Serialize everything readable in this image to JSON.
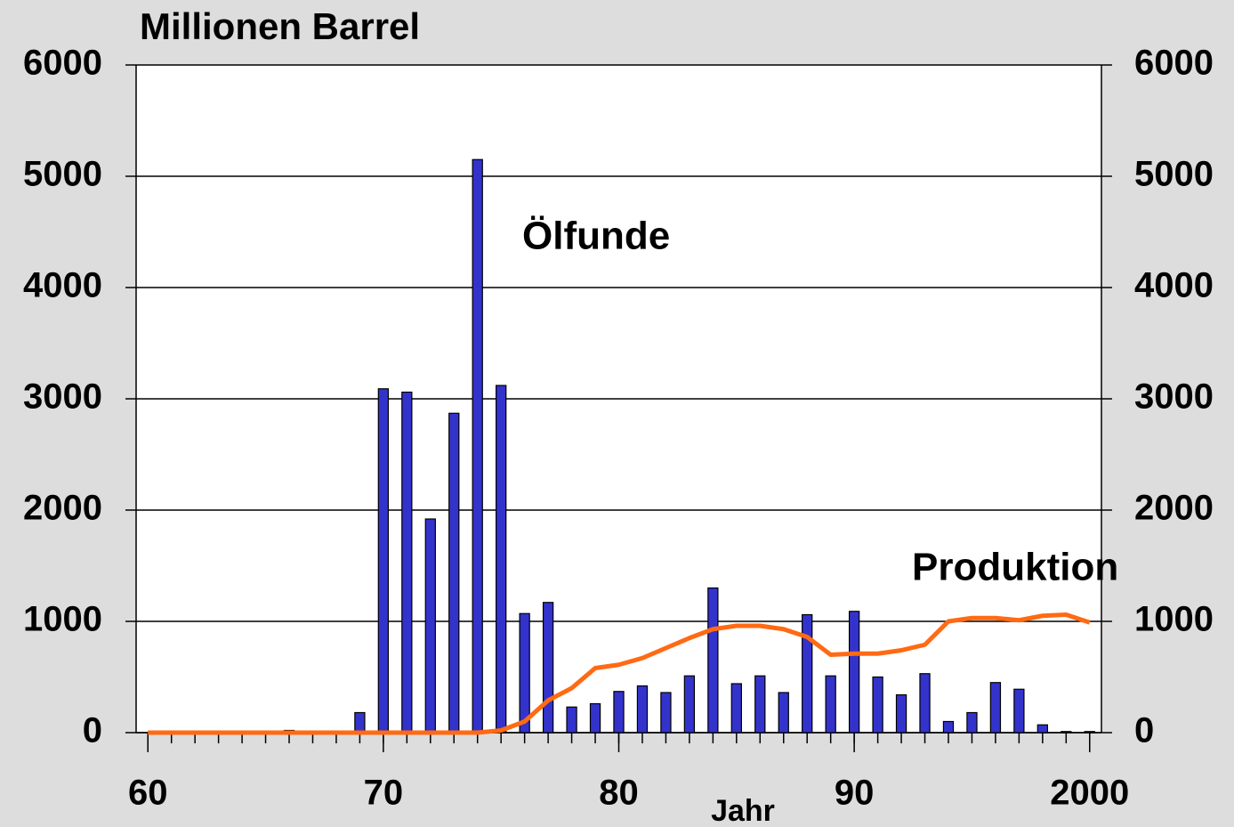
{
  "chart_data": {
    "type": "bar",
    "title": "Millionen Barrel",
    "xlabel": "Jahr",
    "x": [
      60,
      61,
      62,
      63,
      64,
      65,
      66,
      67,
      68,
      69,
      70,
      71,
      72,
      73,
      74,
      75,
      76,
      77,
      78,
      79,
      80,
      81,
      82,
      83,
      84,
      85,
      86,
      87,
      88,
      89,
      90,
      91,
      92,
      93,
      94,
      95,
      96,
      97,
      98,
      99,
      100
    ],
    "series": [
      {
        "name": "Ölfunde",
        "type": "bar",
        "color": "#3333cc",
        "values": [
          0,
          0,
          0,
          0,
          0,
          0,
          20,
          0,
          0,
          180,
          3090,
          3060,
          1920,
          2870,
          5150,
          3120,
          1070,
          1170,
          230,
          260,
          370,
          420,
          360,
          510,
          1300,
          440,
          510,
          360,
          1060,
          510,
          1090,
          500,
          340,
          530,
          100,
          180,
          450,
          390,
          70,
          10,
          10
        ]
      },
      {
        "name": "Produktion",
        "type": "line",
        "color": "#ff6a13",
        "axis": "y2",
        "values": [
          0,
          0,
          0,
          0,
          0,
          0,
          0,
          0,
          0,
          0,
          0,
          0,
          0,
          0,
          0,
          20,
          100,
          290,
          400,
          580,
          610,
          670,
          760,
          850,
          930,
          960,
          960,
          930,
          860,
          700,
          710,
          710,
          740,
          790,
          1000,
          1030,
          1030,
          1010,
          1050,
          1060,
          990
        ]
      }
    ],
    "xlim": [
      59.5,
      100.5
    ],
    "xticks": [
      60,
      70,
      80,
      90,
      {
        "value": 100,
        "label": "2000"
      }
    ],
    "ylim": [
      0,
      6000
    ],
    "yticks": [
      0,
      1000,
      2000,
      3000,
      4000,
      5000,
      6000
    ],
    "y2lim": [
      0,
      6000
    ],
    "y2ticks": [
      0,
      1000,
      2000,
      3000,
      4000,
      5000,
      6000
    ],
    "grid": true
  }
}
